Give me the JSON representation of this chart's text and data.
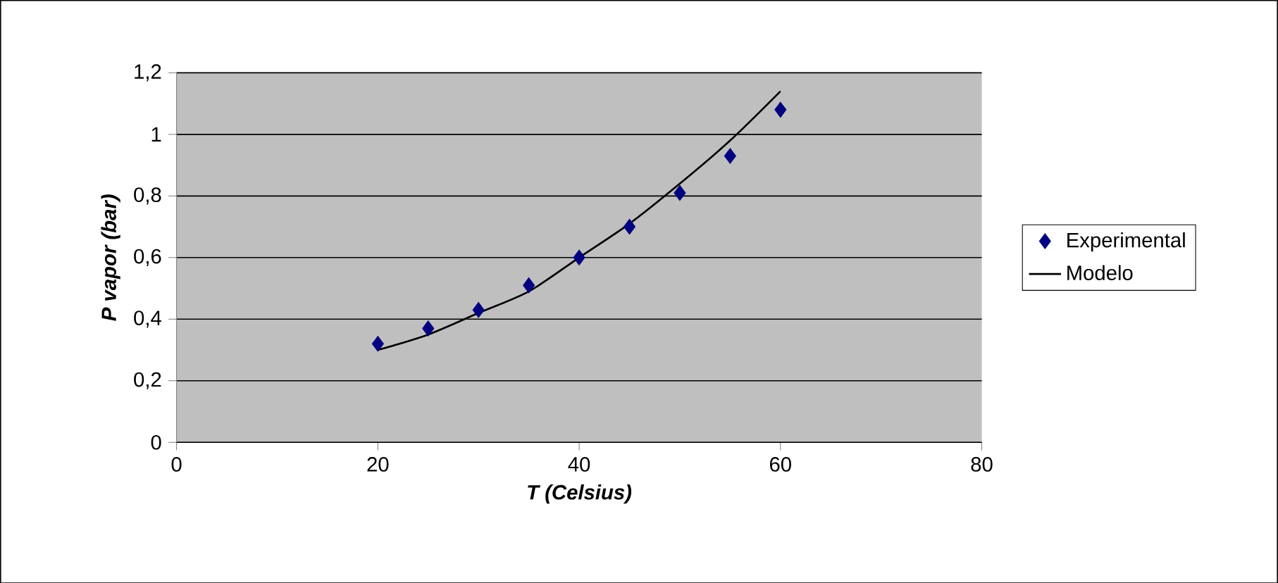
{
  "chart_data": {
    "type": "scatter",
    "xlabel": "T (Celsius)",
    "ylabel": "P vapor (bar)",
    "xlim": [
      0,
      80
    ],
    "xticks": [
      0,
      20,
      40,
      60,
      80
    ],
    "ylim": [
      0,
      1.2
    ],
    "yticks": [
      0,
      {
        "value": 0.2,
        "label": "0,2"
      },
      {
        "value": 0.4,
        "label": "0,4"
      },
      {
        "value": 0.6,
        "label": "0,6"
      },
      {
        "value": 0.8,
        "label": "0,8"
      },
      1,
      {
        "value": 1.2,
        "label": "1,2"
      }
    ],
    "grid": "y",
    "legend": "right",
    "series": [
      {
        "name": "Experimental",
        "marker": "diamond",
        "color": "#000080",
        "x": [
          20,
          25,
          30,
          35,
          40,
          45,
          50,
          55,
          60
        ],
        "values": [
          0.32,
          0.37,
          0.43,
          0.51,
          0.6,
          0.7,
          0.81,
          0.93,
          1.08
        ]
      },
      {
        "name": "Modelo",
        "type": "line",
        "marker": "none",
        "line_style": "solid",
        "color": "#000000",
        "x": [
          20,
          25,
          30,
          35,
          40,
          45,
          50,
          55,
          60
        ],
        "values": [
          0.3,
          0.35,
          0.42,
          0.49,
          0.6,
          0.71,
          0.84,
          0.98,
          1.14
        ]
      }
    ]
  }
}
